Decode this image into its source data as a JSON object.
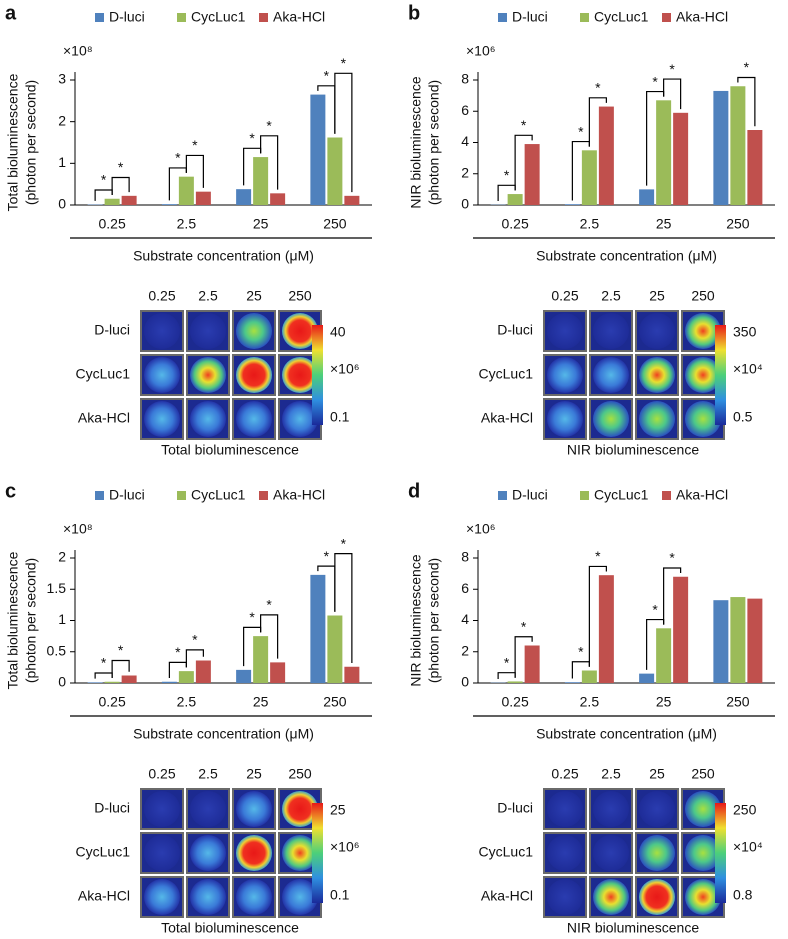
{
  "chart_data": [
    {
      "type": "bar",
      "panel": "a",
      "y_label": [
        "Total bioluminescence",
        "(photon per second)"
      ],
      "y_multiplier": "×10⁸",
      "x_label": "Substrate concentration (μM)",
      "categories": [
        "0.25",
        "2.5",
        "25",
        "250"
      ],
      "series": [
        {
          "name": "D-luci",
          "color": "#4f81bd",
          "values": [
            0.01,
            0.02,
            0.38,
            2.65
          ]
        },
        {
          "name": "CycLuc1",
          "color": "#9bbb59",
          "values": [
            0.15,
            0.68,
            1.15,
            1.62
          ]
        },
        {
          "name": "Aka-HCl",
          "color": "#c0504d",
          "values": [
            0.22,
            0.32,
            0.28,
            0.22
          ]
        }
      ],
      "ylim": [
        0,
        3
      ],
      "yticks": [
        0,
        1,
        2,
        3
      ],
      "annotations": [
        {
          "text": "*",
          "category": 0,
          "series": [
            0,
            1
          ]
        },
        {
          "text": "*",
          "category": 0,
          "series": [
            1,
            2
          ]
        },
        {
          "text": "*",
          "category": 1,
          "series": [
            0,
            1
          ]
        },
        {
          "text": "*",
          "category": 1,
          "series": [
            1,
            2
          ]
        },
        {
          "text": "*",
          "category": 2,
          "series": [
            0,
            1
          ]
        },
        {
          "text": "*",
          "category": 2,
          "series": [
            1,
            2
          ]
        },
        {
          "text": "*",
          "category": 3,
          "series": [
            0,
            1
          ]
        },
        {
          "text": "*",
          "category": 3,
          "series": [
            1,
            2
          ]
        }
      ]
    },
    {
      "type": "bar",
      "panel": "b",
      "y_label": [
        "NIR bioluminescence",
        "(photon per second)"
      ],
      "y_multiplier": "×10⁶",
      "x_label": "Substrate concentration (μM)",
      "categories": [
        "0.25",
        "2.5",
        "25",
        "250"
      ],
      "series": [
        {
          "name": "D-luci",
          "color": "#4f81bd",
          "values": [
            0.02,
            0.05,
            1.0,
            7.3
          ]
        },
        {
          "name": "CycLuc1",
          "color": "#9bbb59",
          "values": [
            0.7,
            3.5,
            6.7,
            7.6
          ]
        },
        {
          "name": "Aka-HCl",
          "color": "#c0504d",
          "values": [
            3.9,
            6.3,
            5.9,
            4.8
          ]
        }
      ],
      "ylim": [
        0,
        8
      ],
      "yticks": [
        0,
        2,
        4,
        6,
        8
      ],
      "annotations": [
        {
          "text": "*",
          "category": 0,
          "series": [
            0,
            1
          ]
        },
        {
          "text": "*",
          "category": 0,
          "series": [
            1,
            2
          ]
        },
        {
          "text": "*",
          "category": 1,
          "series": [
            0,
            1
          ]
        },
        {
          "text": "*",
          "category": 1,
          "series": [
            1,
            2
          ]
        },
        {
          "text": "*",
          "category": 2,
          "series": [
            0,
            1
          ]
        },
        {
          "text": "*",
          "category": 2,
          "series": [
            1,
            2
          ]
        },
        {
          "text": "*",
          "category": 3,
          "series": [
            1,
            2
          ]
        }
      ]
    },
    {
      "type": "bar",
      "panel": "c",
      "y_label": [
        "Total bioluminescence",
        "(photon per second)"
      ],
      "y_multiplier": "×10⁸",
      "x_label": "Substrate concentration (μM)",
      "categories": [
        "0.25",
        "2.5",
        "25",
        "250"
      ],
      "series": [
        {
          "name": "D-luci",
          "color": "#4f81bd",
          "values": [
            0.01,
            0.02,
            0.21,
            1.73
          ]
        },
        {
          "name": "CycLuc1",
          "color": "#9bbb59",
          "values": [
            0.02,
            0.19,
            0.75,
            1.08
          ]
        },
        {
          "name": "Aka-HCl",
          "color": "#c0504d",
          "values": [
            0.12,
            0.36,
            0.33,
            0.26
          ]
        }
      ],
      "ylim": [
        0,
        2
      ],
      "yticks": [
        0,
        0.5,
        1,
        1.5,
        2
      ],
      "annotations": [
        {
          "text": "*",
          "category": 0,
          "series": [
            0,
            1
          ]
        },
        {
          "text": "*",
          "category": 0,
          "series": [
            1,
            2
          ]
        },
        {
          "text": "*",
          "category": 1,
          "series": [
            0,
            1
          ]
        },
        {
          "text": "*",
          "category": 1,
          "series": [
            1,
            2
          ]
        },
        {
          "text": "*",
          "category": 2,
          "series": [
            0,
            1
          ]
        },
        {
          "text": "*",
          "category": 2,
          "series": [
            1,
            2
          ]
        },
        {
          "text": "*",
          "category": 3,
          "series": [
            0,
            1
          ]
        },
        {
          "text": "*",
          "category": 3,
          "series": [
            1,
            2
          ]
        }
      ]
    },
    {
      "type": "bar",
      "panel": "d",
      "y_label": [
        "NIR bioluminescence",
        "(photon per second)"
      ],
      "y_multiplier": "×10⁶",
      "x_label": "Substrate concentration (μM)",
      "categories": [
        "0.25",
        "2.5",
        "25",
        "250"
      ],
      "series": [
        {
          "name": "D-luci",
          "color": "#4f81bd",
          "values": [
            0.02,
            0.05,
            0.6,
            5.3
          ]
        },
        {
          "name": "CycLuc1",
          "color": "#9bbb59",
          "values": [
            0.1,
            0.8,
            3.5,
            5.5
          ]
        },
        {
          "name": "Aka-HCl",
          "color": "#c0504d",
          "values": [
            2.4,
            6.9,
            6.8,
            5.4
          ]
        }
      ],
      "ylim": [
        0,
        8
      ],
      "yticks": [
        0,
        2,
        4,
        6,
        8
      ],
      "annotations": [
        {
          "text": "*",
          "category": 0,
          "series": [
            0,
            1
          ]
        },
        {
          "text": "*",
          "category": 0,
          "series": [
            1,
            2
          ]
        },
        {
          "text": "*",
          "category": 1,
          "series": [
            0,
            1
          ]
        },
        {
          "text": "*",
          "category": 1,
          "series": [
            1,
            2
          ]
        },
        {
          "text": "*",
          "category": 2,
          "series": [
            0,
            1
          ]
        },
        {
          "text": "*",
          "category": 2,
          "series": [
            1,
            2
          ]
        }
      ]
    }
  ],
  "image_panels": [
    {
      "columns": [
        "0.25",
        "2.5",
        "25",
        "250"
      ],
      "rows": [
        "D-luci",
        "CycLuc1",
        "Aka-HCl"
      ],
      "colorbar": {
        "max": "40",
        "multiplier": "×10⁶",
        "min": "0.1"
      },
      "caption": "Total bioluminescence"
    },
    {
      "columns": [
        "0.25",
        "2.5",
        "25",
        "250"
      ],
      "rows": [
        "D-luci",
        "CycLuc1",
        "Aka-HCl"
      ],
      "colorbar": {
        "max": "350",
        "multiplier": "×10⁴",
        "min": "0.5"
      },
      "caption": "NIR bioluminescence"
    },
    {
      "columns": [
        "0.25",
        "2.5",
        "25",
        "250"
      ],
      "rows": [
        "D-luci",
        "CycLuc1",
        "Aka-HCl"
      ],
      "colorbar": {
        "max": "25",
        "multiplier": "×10⁶",
        "min": "0.1"
      },
      "caption": "Total bioluminescence"
    },
    {
      "columns": [
        "0.25",
        "2.5",
        "25",
        "250"
      ],
      "rows": [
        "D-luci",
        "CycLuc1",
        "Aka-HCl"
      ],
      "colorbar": {
        "max": "250",
        "multiplier": "×10⁴",
        "min": "0.8"
      },
      "caption": "NIR bioluminescence"
    }
  ]
}
